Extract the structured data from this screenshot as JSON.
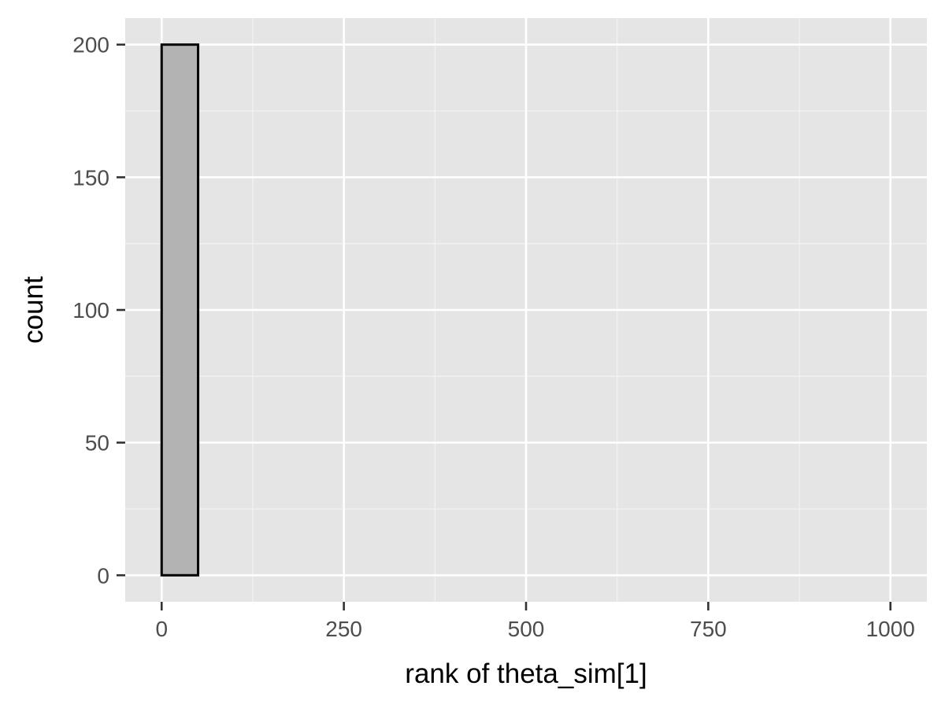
{
  "chart_data": {
    "type": "bar",
    "subtype": "histogram",
    "xlabel": "rank of theta_sim[1]",
    "ylabel": "count",
    "xlim": [
      -50,
      1050
    ],
    "ylim": [
      -10,
      210
    ],
    "x_ticks": [
      0,
      250,
      500,
      750,
      1000
    ],
    "x_tick_labels": [
      "0",
      "250",
      "500",
      "750",
      "1000"
    ],
    "y_ticks": [
      0,
      50,
      100,
      150,
      200
    ],
    "y_tick_labels": [
      "0",
      "50",
      "100",
      "150",
      "200"
    ],
    "bins": [
      {
        "x0": 0,
        "x1": 50,
        "count": 200
      },
      {
        "x0": 50,
        "x1": 100,
        "count": 0
      },
      {
        "x0": 100,
        "x1": 150,
        "count": 0
      },
      {
        "x0": 150,
        "x1": 200,
        "count": 0
      },
      {
        "x0": 200,
        "x1": 250,
        "count": 0
      },
      {
        "x0": 250,
        "x1": 300,
        "count": 0
      },
      {
        "x0": 300,
        "x1": 350,
        "count": 0
      },
      {
        "x0": 350,
        "x1": 400,
        "count": 0
      },
      {
        "x0": 400,
        "x1": 450,
        "count": 0
      },
      {
        "x0": 450,
        "x1": 500,
        "count": 0
      },
      {
        "x0": 500,
        "x1": 550,
        "count": 0
      },
      {
        "x0": 550,
        "x1": 600,
        "count": 0
      },
      {
        "x0": 600,
        "x1": 650,
        "count": 0
      },
      {
        "x0": 650,
        "x1": 700,
        "count": 0
      },
      {
        "x0": 700,
        "x1": 750,
        "count": 0
      },
      {
        "x0": 750,
        "x1": 800,
        "count": 0
      },
      {
        "x0": 800,
        "x1": 850,
        "count": 0
      },
      {
        "x0": 850,
        "x1": 900,
        "count": 0
      },
      {
        "x0": 900,
        "x1": 950,
        "count": 0
      },
      {
        "x0": 950,
        "x1": 1000,
        "count": 0
      }
    ],
    "grid": true,
    "colors": {
      "panel_background": "#e5e5e5",
      "grid_major": "#ffffff",
      "grid_minor": "#f2f2f2",
      "bar_fill": "#b3b3b3",
      "bar_outline": "#000000",
      "tick_label": "#4d4d4d",
      "tick_mark": "#333333",
      "axis_title": "#000000"
    }
  }
}
